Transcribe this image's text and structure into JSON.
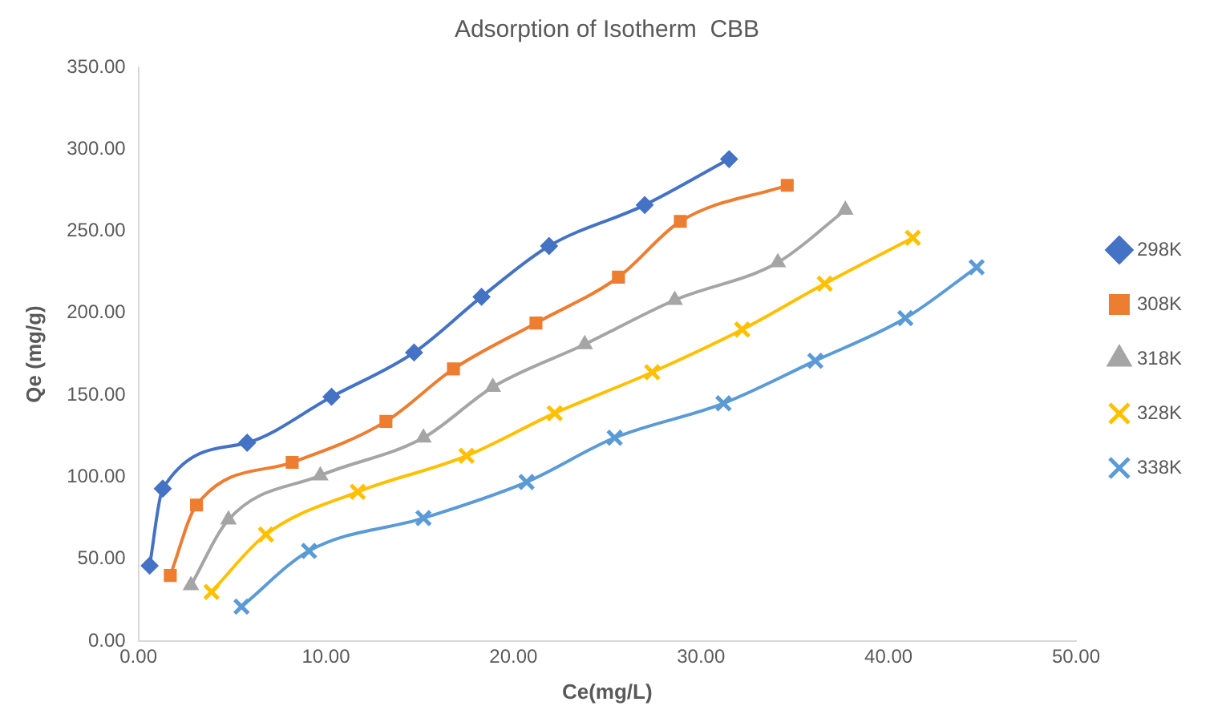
{
  "chart_data": {
    "type": "line",
    "title": "Adsorption of Isotherm  CBB",
    "xlabel": "Ce(mg/L)",
    "ylabel": "Qe (mg/g)",
    "xlim": [
      0,
      50
    ],
    "xticks": [
      {
        "value": 0,
        "label": "0.00"
      },
      {
        "value": 10,
        "label": "10.00"
      },
      {
        "value": 20,
        "label": "20.00"
      },
      {
        "value": 30,
        "label": "30.00"
      },
      {
        "value": 40,
        "label": "40.00"
      },
      {
        "value": 50,
        "label": "50.00"
      }
    ],
    "ylim": [
      0,
      350
    ],
    "yticks": [
      {
        "value": 0,
        "label": "0.00"
      },
      {
        "value": 50,
        "label": "50.00"
      },
      {
        "value": 100,
        "label": "100.00"
      },
      {
        "value": 150,
        "label": "150.00"
      },
      {
        "value": 200,
        "label": "200.00"
      },
      {
        "value": 250,
        "label": "250.00"
      },
      {
        "value": 300,
        "label": "300.00"
      },
      {
        "value": 350,
        "label": "350.00"
      }
    ],
    "grid": false,
    "legend": "right",
    "line_style": "solid",
    "series": [
      {
        "name": "298K",
        "color": "#4472c4",
        "marker": "diamond",
        "x": [
          0.6,
          1.3,
          5.8,
          10.3,
          14.7,
          18.3,
          21.9,
          27.0,
          31.5
        ],
        "values": [
          46,
          93,
          121,
          149,
          176,
          210,
          241,
          266,
          294
        ]
      },
      {
        "name": "308K",
        "color": "#ed7d31",
        "marker": "square",
        "x": [
          1.7,
          3.1,
          8.2,
          13.2,
          16.8,
          21.2,
          25.6,
          28.9,
          34.6
        ],
        "values": [
          40,
          83,
          109,
          134,
          166,
          194,
          222,
          256,
          278
        ]
      },
      {
        "name": "318K",
        "color": "#a5a5a5",
        "marker": "triangle",
        "x": [
          2.8,
          4.8,
          9.7,
          15.2,
          18.9,
          23.8,
          28.6,
          34.1,
          37.7
        ],
        "values": [
          34,
          74,
          101,
          124,
          155,
          181,
          208,
          231,
          263
        ]
      },
      {
        "name": "328K",
        "color": "#ffc000",
        "marker": "cross",
        "x": [
          3.9,
          6.8,
          11.7,
          17.5,
          22.2,
          27.4,
          32.2,
          36.6,
          41.3
        ],
        "values": [
          30,
          65,
          91,
          113,
          139,
          164,
          190,
          218,
          246
        ]
      },
      {
        "name": "338K",
        "color": "#5b9bd5",
        "marker": "cross",
        "x": [
          5.5,
          9.1,
          15.2,
          20.7,
          25.4,
          31.2,
          36.1,
          40.9,
          44.7
        ],
        "values": [
          21,
          55,
          75,
          97,
          124,
          145,
          171,
          197,
          228
        ]
      }
    ]
  }
}
